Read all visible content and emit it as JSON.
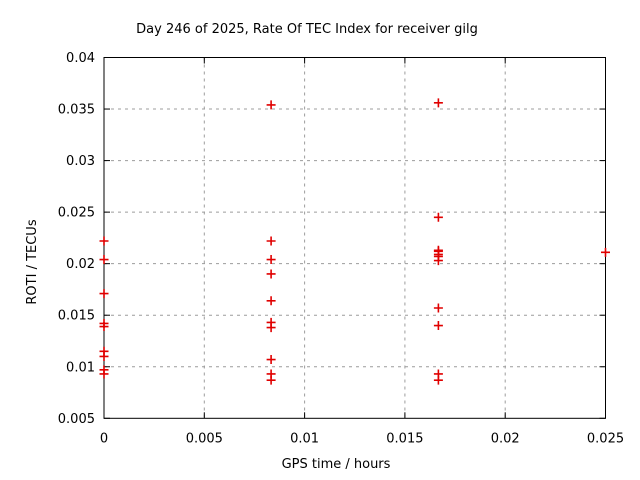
{
  "window": {
    "background": "#ffffff"
  },
  "chart_data": {
    "type": "scatter",
    "title": "Day 246 of 2025, Rate Of TEC Index for receiver gilg",
    "xlabel": "GPS time / hours",
    "ylabel": "ROTI / TECUs",
    "xlim": [
      0,
      0.025
    ],
    "ylim": [
      0.005,
      0.04
    ],
    "xticks": [
      0,
      0.005,
      0.01,
      0.015,
      0.02,
      0.025
    ],
    "yticks": [
      0.005,
      0.01,
      0.015,
      0.02,
      0.025,
      0.03,
      0.035,
      0.04
    ],
    "grid": true,
    "legend": "none",
    "marker": "plus",
    "colors": {
      "marker": "#e00000",
      "grid": "#9c9c9c",
      "axis": "#000000",
      "text": "#000000",
      "background": "#ffffff"
    },
    "series": [
      {
        "name": "ROTI",
        "points": [
          [
            0,
            0.0222
          ],
          [
            0,
            0.0204
          ],
          [
            0,
            0.0171
          ],
          [
            0,
            0.0142
          ],
          [
            0,
            0.0139
          ],
          [
            0,
            0.0115
          ],
          [
            0,
            0.011
          ],
          [
            0,
            0.0097
          ],
          [
            0,
            0.0093
          ],
          [
            0.00833,
            0.0354
          ],
          [
            0.00833,
            0.0222
          ],
          [
            0.00833,
            0.0204
          ],
          [
            0.00833,
            0.019
          ],
          [
            0.00833,
            0.0164
          ],
          [
            0.00833,
            0.0143
          ],
          [
            0.00833,
            0.0138
          ],
          [
            0.00833,
            0.0107
          ],
          [
            0.00833,
            0.0093
          ],
          [
            0.00833,
            0.0087
          ],
          [
            0.01667,
            0.0356
          ],
          [
            0.01667,
            0.0245
          ],
          [
            0.01667,
            0.0213
          ],
          [
            0.01667,
            0.0212
          ],
          [
            0.01667,
            0.0209
          ],
          [
            0.01667,
            0.0207
          ],
          [
            0.01667,
            0.0203
          ],
          [
            0.01667,
            0.0157
          ],
          [
            0.01667,
            0.014
          ],
          [
            0.01667,
            0.0093
          ],
          [
            0.01667,
            0.0087
          ],
          [
            0.025,
            0.0211
          ]
        ]
      }
    ]
  }
}
